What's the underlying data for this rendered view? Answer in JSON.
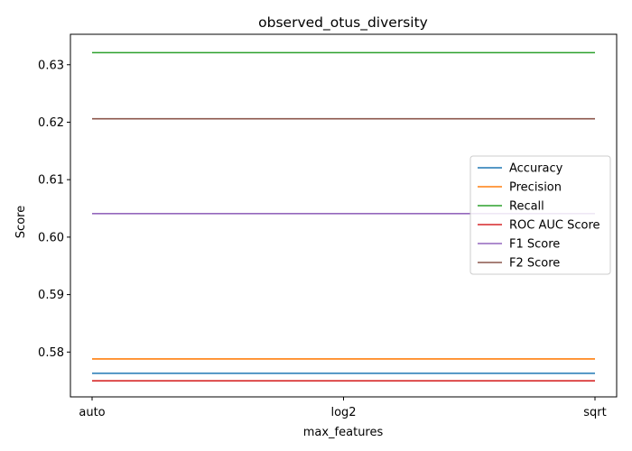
{
  "chart_data": {
    "type": "line",
    "title": "observed_otus_diversity",
    "xlabel": "max_features",
    "ylabel": "Score",
    "categories": [
      "auto",
      "log2",
      "sqrt"
    ],
    "ylim": [
      0.5722,
      0.6353
    ],
    "yticks": [
      0.58,
      0.59,
      0.6,
      0.61,
      0.62,
      0.63
    ],
    "ytick_labels": [
      "0.58",
      "0.59",
      "0.60",
      "0.61",
      "0.62",
      "0.63"
    ],
    "grid": false,
    "legend_position": "center-right",
    "series": [
      {
        "name": "Accuracy",
        "color": "#1f77b4",
        "values": [
          0.5763,
          0.5763,
          0.5763
        ]
      },
      {
        "name": "Precision",
        "color": "#ff7f0e",
        "values": [
          0.5788,
          0.5788,
          0.5788
        ]
      },
      {
        "name": "Recall",
        "color": "#2ca02c",
        "values": [
          0.6321,
          0.6321,
          0.6321
        ]
      },
      {
        "name": "ROC AUC Score",
        "color": "#d62728",
        "values": [
          0.575,
          0.575,
          0.575
        ]
      },
      {
        "name": "F1 Score",
        "color": "#9467bd",
        "values": [
          0.6041,
          0.6041,
          0.6041
        ]
      },
      {
        "name": "F2 Score",
        "color": "#8c564b",
        "values": [
          0.6206,
          0.6206,
          0.6206
        ]
      }
    ]
  }
}
